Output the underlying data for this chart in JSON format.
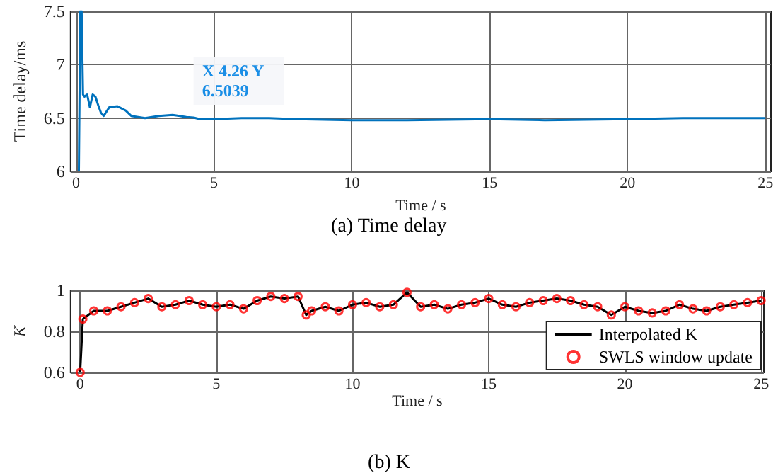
{
  "chart_data": [
    {
      "type": "line",
      "xlabel": "Time / s",
      "ylabel": "Time delay/ms",
      "xlim": [
        -0.2,
        25.2
      ],
      "xticks": [
        0,
        5,
        10,
        15,
        20,
        25
      ],
      "ylim": [
        6,
        7.5
      ],
      "yticks": [
        6,
        6.5,
        7,
        7.5
      ],
      "grid": true,
      "legend": false,
      "annotations": [
        {
          "text": "X 4.26 Y 6.5039",
          "x": 4.26,
          "y": 6.5039
        },
        "(a) Time delay"
      ],
      "series": [
        {
          "color": "#0072bd",
          "x": [
            0.1,
            0.15,
            0.2,
            0.25,
            0.3,
            0.4,
            0.5,
            0.6,
            0.7,
            0.8,
            0.9,
            1.0,
            1.2,
            1.5,
            1.8,
            2.0,
            2.5,
            3.0,
            3.5,
            4.0,
            4.26,
            4.5,
            5,
            6,
            7,
            8,
            10,
            12,
            15,
            17,
            20,
            22,
            25
          ],
          "values": [
            6.0,
            7.5,
            7.5,
            6.72,
            6.7,
            6.72,
            6.6,
            6.72,
            6.7,
            6.62,
            6.55,
            6.52,
            6.6,
            6.61,
            6.57,
            6.52,
            6.5,
            6.52,
            6.53,
            6.51,
            6.5039,
            6.49,
            6.49,
            6.5,
            6.5,
            6.49,
            6.48,
            6.48,
            6.49,
            6.48,
            6.49,
            6.5,
            6.5
          ]
        }
      ]
    },
    {
      "type": "line",
      "xlabel": "Time / s",
      "ylabel": "K",
      "xlim": [
        -0.35,
        25.1
      ],
      "xticks": [
        0,
        5,
        10,
        15,
        20,
        25
      ],
      "ylim": [
        0.6,
        1
      ],
      "yticks": [
        0.6,
        0.8,
        1
      ],
      "grid": true,
      "legend": "bottom right",
      "annotations": [
        "(b) K"
      ],
      "series": [
        {
          "name": "Interpolated K",
          "type": "line",
          "marker": "none",
          "color": "#000000",
          "x": [
            0,
            0.1,
            0.5,
            1,
            1.5,
            2,
            2.5,
            3,
            3.5,
            4,
            4.5,
            5,
            5.5,
            6,
            6.5,
            7,
            7.5,
            8,
            8.3,
            8.5,
            9,
            9.5,
            10,
            10.5,
            11,
            11.5,
            12,
            12.5,
            13,
            13.5,
            14,
            14.5,
            15,
            15.5,
            16,
            16.5,
            17,
            17.5,
            18,
            18.5,
            19,
            19.5,
            20,
            20.5,
            21,
            21.5,
            22,
            22.5,
            23,
            23.5,
            24,
            24.5,
            25
          ],
          "values": [
            0.6,
            0.86,
            0.9,
            0.9,
            0.92,
            0.94,
            0.96,
            0.92,
            0.93,
            0.95,
            0.93,
            0.92,
            0.93,
            0.91,
            0.95,
            0.97,
            0.96,
            0.97,
            0.88,
            0.9,
            0.92,
            0.9,
            0.93,
            0.94,
            0.92,
            0.93,
            0.99,
            0.92,
            0.93,
            0.91,
            0.93,
            0.94,
            0.96,
            0.93,
            0.92,
            0.94,
            0.95,
            0.96,
            0.95,
            0.93,
            0.92,
            0.88,
            0.92,
            0.9,
            0.89,
            0.9,
            0.93,
            0.91,
            0.9,
            0.92,
            0.93,
            0.94,
            0.95
          ]
        },
        {
          "name": "SWLS window update",
          "type": "scatter",
          "marker": "circle",
          "color": "#ff0000",
          "x": [
            0,
            0.1,
            0.5,
            1,
            1.5,
            2,
            2.5,
            3,
            3.5,
            4,
            4.5,
            5,
            5.5,
            6,
            6.5,
            7,
            7.5,
            8,
            8.3,
            8.5,
            9,
            9.5,
            10,
            10.5,
            11,
            11.5,
            12,
            12.5,
            13,
            13.5,
            14,
            14.5,
            15,
            15.5,
            16,
            16.5,
            17,
            17.5,
            18,
            18.5,
            19,
            19.5,
            20,
            20.5,
            21,
            21.5,
            22,
            22.5,
            23,
            23.5,
            24,
            24.5,
            25
          ],
          "values": [
            0.6,
            0.86,
            0.9,
            0.9,
            0.92,
            0.94,
            0.96,
            0.92,
            0.93,
            0.95,
            0.93,
            0.92,
            0.93,
            0.91,
            0.95,
            0.97,
            0.96,
            0.97,
            0.88,
            0.9,
            0.92,
            0.9,
            0.93,
            0.94,
            0.92,
            0.93,
            0.99,
            0.92,
            0.93,
            0.91,
            0.93,
            0.94,
            0.96,
            0.93,
            0.92,
            0.94,
            0.95,
            0.96,
            0.95,
            0.93,
            0.92,
            0.88,
            0.92,
            0.9,
            0.89,
            0.9,
            0.93,
            0.91,
            0.9,
            0.92,
            0.93,
            0.94,
            0.95
          ]
        }
      ]
    }
  ]
}
